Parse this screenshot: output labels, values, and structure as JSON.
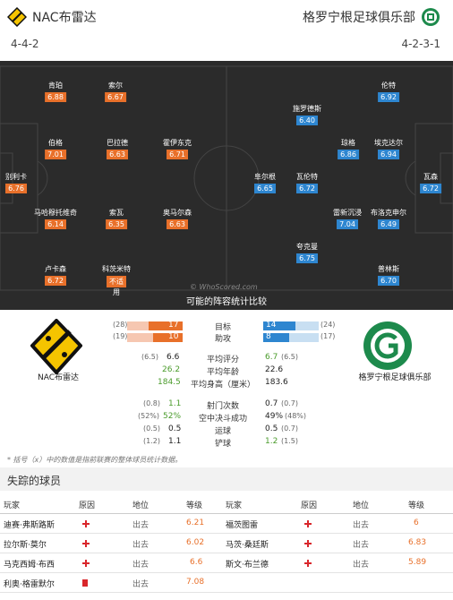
{
  "header": {
    "home_team": "NAC布雷达",
    "away_team": "格罗宁根足球俱乐部",
    "home_formation": "4-4-2",
    "away_formation": "4-2-3-1"
  },
  "pitch": {
    "watermark": "© WhoScored.com",
    "home_players": [
      {
        "name": "肯珀",
        "rating": "6.88"
      },
      {
        "name": "索尔",
        "rating": "6.67"
      },
      {
        "name": "伯格",
        "rating": "7.01"
      },
      {
        "name": "巴拉德",
        "rating": "6.63"
      },
      {
        "name": "霍伊东克",
        "rating": "6.71"
      },
      {
        "name": "别利卡",
        "rating": "6.76"
      },
      {
        "name": "马哈穆托维奇",
        "rating": "6.14"
      },
      {
        "name": "索瓦",
        "rating": "6.35"
      },
      {
        "name": "奥马尔森",
        "rating": "6.63"
      },
      {
        "name": "卢卡森",
        "rating": "6.72"
      },
      {
        "name": "科茨米特",
        "rating": "不适",
        "sub": "用"
      }
    ],
    "away_players": [
      {
        "name": "伦特",
        "rating": "6.92"
      },
      {
        "name": "施罗德斯",
        "rating": "6.40"
      },
      {
        "name": "琼格",
        "rating": "6.86"
      },
      {
        "name": "埃克达尔",
        "rating": "6.94"
      },
      {
        "name": "阜尔根",
        "rating": "6.65"
      },
      {
        "name": "瓦伦特",
        "rating": "6.72"
      },
      {
        "name": "瓦森",
        "rating": "6.72"
      },
      {
        "name": "雷新沉浸",
        "rating": "7.04"
      },
      {
        "name": "布洛克申尔",
        "rating": "6.49"
      },
      {
        "name": "夸克曼",
        "rating": "6.75"
      },
      {
        "name": "普林斯",
        "rating": "6.70"
      }
    ]
  },
  "compare": {
    "title": "可能的阵容统计比较",
    "home_label": "NAC布雷达",
    "away_label": "格罗宁根足球俱乐部",
    "bars": [
      {
        "label": "目标",
        "home_season": "(28)",
        "home": "17",
        "away": "14",
        "away_season": "(24)",
        "home_frac": 0.61,
        "away_frac": 0.58
      },
      {
        "label": "助攻",
        "home_season": "(19)",
        "home": "10",
        "away": "8",
        "away_season": "(17)",
        "home_frac": 0.53,
        "away_frac": 0.47
      }
    ],
    "stats1": [
      {
        "label": "平均评分",
        "home_season": "(6.5)",
        "home": "6.6",
        "away": "6.7",
        "away_season": "(6.5)"
      },
      {
        "label": "平均年龄",
        "home_season": "",
        "home": "26.2",
        "away": "22.6",
        "away_season": ""
      },
      {
        "label": "平均身高（厘米）",
        "home_season": "",
        "home": "184.5",
        "away": "183.6",
        "away_season": ""
      }
    ],
    "stats2": [
      {
        "label": "射门次数",
        "home_season": "(0.8)",
        "home": "1.1",
        "away": "0.7",
        "away_season": "(0.7)"
      },
      {
        "label": "空中决斗成功",
        "home_season": "(52%)",
        "home": "52%",
        "away": "49%",
        "away_season": "(48%)"
      },
      {
        "label": "运球",
        "home_season": "(0.5)",
        "home": "0.5",
        "away": "0.5",
        "away_season": "(0.7)"
      },
      {
        "label": "铲球",
        "home_season": "(1.2)",
        "home": "1.1",
        "away": "1.2",
        "away_season": "(1.5)"
      }
    ],
    "footnote": "* 括号（x）中的数值是指前联赛的整体球员统计数据。"
  },
  "missing": {
    "title": "失踪的球员",
    "headers": {
      "player": "玩家",
      "reason": "原因",
      "status": "地位",
      "rating": "等级"
    },
    "left": [
      {
        "player": "迪赛·弗斯路斯",
        "reason": "injury",
        "status": "出去",
        "rating": "6.21"
      },
      {
        "player": "拉尔斯·莫尔",
        "reason": "injury",
        "status": "出去",
        "rating": "6.02"
      },
      {
        "player": "马克西姆·布西",
        "reason": "injury",
        "status": "出去",
        "rating": "6.6"
      },
      {
        "player": "利奥·格雷默尔",
        "reason": "redcard",
        "status": "出去",
        "rating": "7.08"
      }
    ],
    "right": [
      {
        "player": "福茨图雷",
        "reason": "injury",
        "status": "出去",
        "rating": "6"
      },
      {
        "player": "马茨·桑廷斯",
        "reason": "injury",
        "status": "出去",
        "rating": "6.83"
      },
      {
        "player": "斯文·布兰德",
        "reason": "injury",
        "status": "出去",
        "rating": "5.89"
      }
    ]
  },
  "colors": {
    "home_accent": "#e8702a",
    "away_accent": "#2e86d0",
    "pitch": "#2b2b2b"
  }
}
